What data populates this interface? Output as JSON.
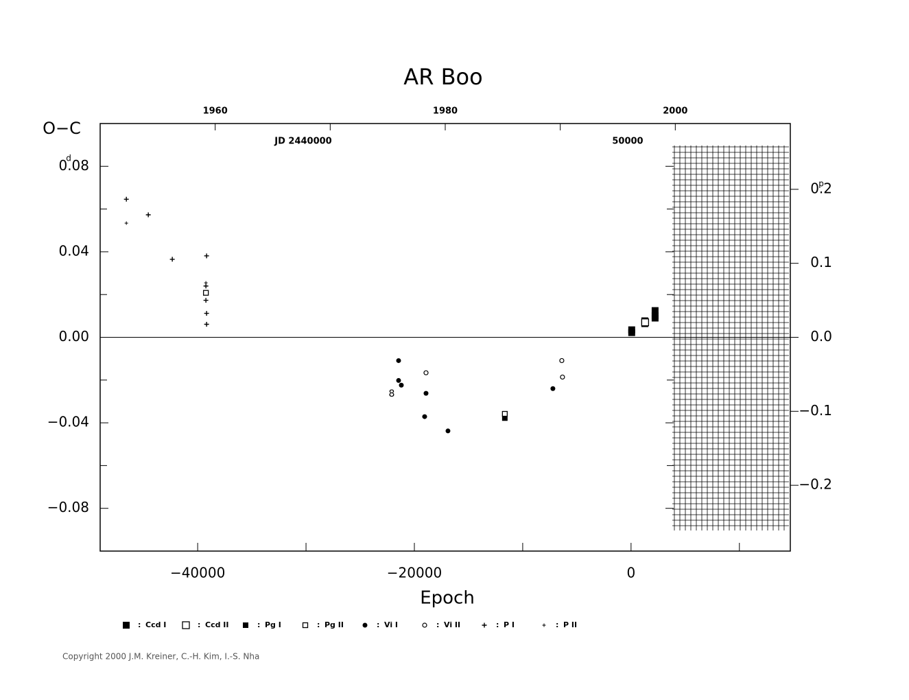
{
  "chart_data": {
    "type": "scatter",
    "title": "AR Boo",
    "ylabel": "O−C",
    "xlabel": "Epoch",
    "y_unit": "d",
    "y2_unit": "p",
    "annotations": [
      "JD 2440000",
      "50000",
      "8"
    ],
    "copyright": "Copyright 2000 J.M. Kreiner, C.-H. Kim, I.-S. Nha",
    "legend_separator": ":",
    "xlim": [
      -49000,
      14700
    ],
    "xticks": [
      {
        "value": -40000,
        "label": "−40000"
      },
      {
        "value": -20000,
        "label": "−20000"
      },
      0
    ],
    "xminor": [
      -30000,
      -10000,
      10000
    ],
    "ylim": [
      -0.1,
      0.1
    ],
    "yticks": [
      {
        "value": 0.08,
        "label": "0.08"
      },
      {
        "value": 0.04,
        "label": "0.04"
      },
      {
        "value": 0,
        "label": "0.00"
      },
      {
        "value": -0.04,
        "label": "−0.04"
      },
      {
        "value": -0.08,
        "label": "−0.08"
      }
    ],
    "yminor": [
      0.06,
      0.02,
      -0.02,
      -0.06
    ],
    "y2lim": [
      -0.2889,
      0.2889
    ],
    "y2ticks": [
      {
        "value": 0.2,
        "label": "0.2"
      },
      {
        "value": 0.1,
        "label": "0.1"
      },
      {
        "value": 0,
        "label": "0.0"
      },
      {
        "value": -0.1,
        "label": "−0.1"
      },
      {
        "value": -0.2,
        "label": "−0.2"
      }
    ],
    "x2lim": [
      1950,
      2010
    ],
    "x2ticks": [
      1960,
      1980,
      2000
    ],
    "x2minor": [
      1970,
      1990
    ],
    "series": [
      {
        "name": "Ccd I",
        "marker": "square-filled",
        "color": "#000",
        "x": [
          60,
          60,
          1270,
          1270,
          2220,
          2220,
          2220
        ],
        "values": [
          0.0035,
          0.0022,
          0.0077,
          0.0064,
          0.0125,
          0.01,
          0.009
        ]
      },
      {
        "name": "Ccd II",
        "marker": "square-open",
        "color": "#000",
        "x": [
          1300
        ],
        "values": [
          0.007
        ]
      },
      {
        "name": "Pg I",
        "marker": "small-square-filled",
        "color": "#000",
        "x": [
          -11650
        ],
        "values": [
          -0.0378
        ]
      },
      {
        "name": "Pg II",
        "marker": "small-square-open",
        "color": "#000",
        "x": [
          -11650,
          -39240
        ],
        "values": [
          -0.0358,
          0.0208
        ]
      },
      {
        "name": "Vi I",
        "marker": "circle-filled",
        "color": "#000",
        "x": [
          -21456,
          -21456,
          -21203,
          -18924,
          -19051,
          -16899,
          -7215
        ],
        "values": [
          -0.0109,
          -0.0202,
          -0.0224,
          -0.0262,
          -0.0371,
          -0.0438,
          -0.024
        ]
      },
      {
        "name": "Vi II",
        "marker": "circle-open",
        "color": "#000",
        "x": [
          -18924,
          -6392,
          -6329
        ],
        "values": [
          -0.0166,
          -0.0109,
          -0.0186
        ]
      },
      {
        "name": "P I",
        "marker": "plus",
        "color": "#000",
        "x": [
          -46582,
          -44557,
          -42342,
          -39177,
          -39177,
          -39177,
          -39240,
          -39240
        ],
        "values": [
          0.0646,
          0.0573,
          0.0365,
          0.0381,
          0.0112,
          0.0061,
          0.0173,
          0.024
        ]
      },
      {
        "name": "P II",
        "marker": "small-plus",
        "color": "#000",
        "x": [
          -46582,
          -39240
        ],
        "values": [
          0.0534,
          0.0255
        ]
      }
    ]
  }
}
